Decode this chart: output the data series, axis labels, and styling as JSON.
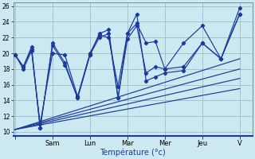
{
  "background_color": "#cce8f0",
  "grid_color": "#9abccc",
  "line_color": "#1a3a9c",
  "xlabel": "Température (°c)",
  "ylim": [
    9.5,
    26.5
  ],
  "yticks": [
    10,
    12,
    14,
    16,
    18,
    20,
    22,
    24,
    26
  ],
  "xlim": [
    -0.05,
    6.35
  ],
  "day_labels": [
    "",
    "Sam",
    "Lun",
    "Mar",
    "Mer",
    "Jeu",
    "V"
  ],
  "day_positions": [
    0,
    1,
    2,
    3,
    4,
    5,
    6
  ],
  "series": [
    {
      "x": [
        0.0,
        0.22,
        0.44,
        0.67,
        1.0,
        1.33,
        1.67,
        2.0,
        2.25,
        2.5,
        2.75,
        3.0,
        3.25,
        3.5,
        3.75,
        4.0,
        4.5,
        5.0,
        5.5,
        6.0
      ],
      "y": [
        19.8,
        18.3,
        20.8,
        10.5,
        21.3,
        18.8,
        14.3,
        19.8,
        22.5,
        23.0,
        14.3,
        22.5,
        25.0,
        16.5,
        17.0,
        17.5,
        17.8,
        21.3,
        19.3,
        25.8
      ]
    },
    {
      "x": [
        0.0,
        0.22,
        0.44,
        0.67,
        1.0,
        1.33,
        1.67,
        2.0,
        2.25,
        2.5,
        2.75,
        3.0,
        3.25,
        3.5,
        3.75,
        4.0,
        4.5,
        5.0,
        5.5,
        6.0
      ],
      "y": [
        19.8,
        18.3,
        20.5,
        10.5,
        21.0,
        18.5,
        14.3,
        19.8,
        22.0,
        22.5,
        14.3,
        21.8,
        23.5,
        17.5,
        18.3,
        18.0,
        18.3,
        21.3,
        19.3,
        25.0
      ]
    },
    {
      "x": [
        0.0,
        0.22,
        0.44,
        0.67,
        1.0,
        1.33,
        1.67,
        2.0,
        2.25,
        2.5,
        2.75,
        3.0,
        3.25,
        3.5,
        3.75,
        4.0,
        4.5,
        5.0,
        5.5,
        6.0
      ],
      "y": [
        19.8,
        18.0,
        20.3,
        11.0,
        20.0,
        19.8,
        14.5,
        20.0,
        22.3,
        22.0,
        15.8,
        22.5,
        23.8,
        21.3,
        21.5,
        18.0,
        21.3,
        23.5,
        19.3,
        25.0
      ]
    }
  ],
  "trend_lines": [
    {
      "x": [
        0.0,
        6.0
      ],
      "y": [
        10.3,
        19.3
      ]
    },
    {
      "x": [
        0.0,
        6.0
      ],
      "y": [
        10.3,
        18.0
      ]
    },
    {
      "x": [
        0.0,
        6.0
      ],
      "y": [
        10.3,
        16.8
      ]
    },
    {
      "x": [
        0.0,
        6.0
      ],
      "y": [
        10.3,
        15.5
      ]
    }
  ]
}
